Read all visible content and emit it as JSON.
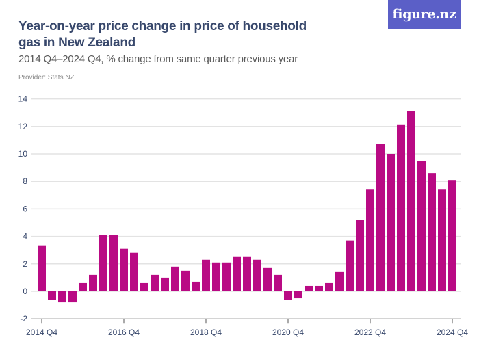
{
  "header": {
    "title": "Year-on-year price change in price of household gas in New Zealand",
    "subtitle": "2014 Q4–2024 Q4, % change from same quarter previous year",
    "provider": "Provider: Stats NZ",
    "logo": "figure.nz"
  },
  "colors": {
    "bar": "#b90a84",
    "grid": "#e3e3e3",
    "axis": "#555555",
    "text": "#37476b",
    "logo_bg": "#5b5fc7"
  },
  "chart_data": {
    "type": "bar",
    "title": "Year-on-year price change in price of household gas in New Zealand",
    "subtitle": "2014 Q4–2024 Q4, % change from same quarter previous year",
    "xlabel": "",
    "ylabel": "% change",
    "ylim": [
      -2,
      14
    ],
    "yticks": [
      -2,
      0,
      2,
      4,
      6,
      8,
      10,
      12,
      14
    ],
    "grid": true,
    "categories": [
      "2014 Q4",
      "2015 Q1",
      "2015 Q2",
      "2015 Q3",
      "2015 Q4",
      "2016 Q1",
      "2016 Q2",
      "2016 Q3",
      "2016 Q4",
      "2017 Q1",
      "2017 Q2",
      "2017 Q3",
      "2017 Q4",
      "2018 Q1",
      "2018 Q2",
      "2018 Q3",
      "2018 Q4",
      "2019 Q1",
      "2019 Q2",
      "2019 Q3",
      "2019 Q4",
      "2020 Q1",
      "2020 Q2",
      "2020 Q3",
      "2020 Q4",
      "2021 Q1",
      "2021 Q2",
      "2021 Q3",
      "2021 Q4",
      "2022 Q1",
      "2022 Q2",
      "2022 Q3",
      "2022 Q4",
      "2023 Q1",
      "2023 Q2",
      "2023 Q3",
      "2023 Q4",
      "2024 Q1",
      "2024 Q2",
      "2024 Q3",
      "2024 Q4"
    ],
    "xtick_labels": [
      "2014 Q4",
      "2016 Q4",
      "2018 Q4",
      "2020 Q4",
      "2022 Q4",
      "2024 Q4"
    ],
    "values": [
      3.3,
      -0.6,
      -0.8,
      -0.8,
      0.6,
      1.2,
      4.1,
      4.1,
      3.1,
      2.8,
      0.6,
      1.2,
      1.0,
      1.8,
      1.5,
      0.7,
      2.3,
      2.1,
      2.1,
      2.5,
      2.5,
      2.3,
      1.7,
      1.2,
      -0.6,
      -0.5,
      0.4,
      0.4,
      0.6,
      1.4,
      3.7,
      5.2,
      7.4,
      10.7,
      10.0,
      12.1,
      13.1,
      9.5,
      8.6,
      7.4,
      8.1
    ]
  }
}
